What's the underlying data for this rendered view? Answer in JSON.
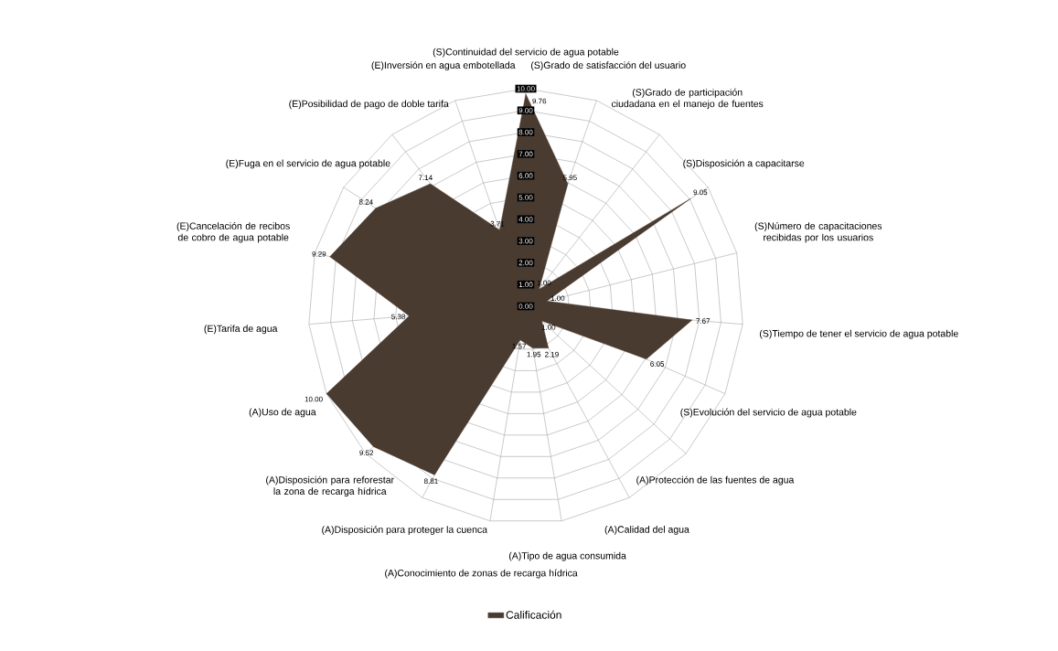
{
  "chart_data": {
    "type": "radar",
    "categories": [
      "(S)Continuidad del servicio de agua potable",
      "(S)Grado de satisfacción del usuario",
      "(S)Grado de participación ciudadana en el manejo de fuentes",
      "(S)Disposición a capacitarse",
      "(S)Número de capacitaciones recibidas por los usuarios",
      "(S)Tiempo de tener el servicio de agua potable",
      "(S)Evolución del servicio de agua potable",
      "(A)Protección de las fuentes de agua",
      "(A)Calidad del agua",
      "(A)Tipo de agua consumida",
      "(A)Conocimiento de zonas de recarga hídrica",
      "(A)Disposición para proteger la cuenca",
      "(A)Disposición para reforestar la zona de recarga hídrica",
      "(A)Uso de agua",
      "(E)Tarifa de agua",
      "(E)Cancelación de  recibos de cobro de agua potable",
      "(E)Fuga en el servicio de agua potable",
      "(E)Posibilidad de pago de  doble  tarifa",
      "(E)Inversión en agua embotellada"
    ],
    "series": [
      {
        "name": "Calificación",
        "color": "#4a3b30",
        "values": [
          9.76,
          5.95,
          1.0,
          9.05,
          1.0,
          7.67,
          6.05,
          1.0,
          2.19,
          1.95,
          1.57,
          8.81,
          9.52,
          10.0,
          5.38,
          9.29,
          8.24,
          7.14,
          3.71
        ],
        "value_labels": [
          "9.76",
          "5.95",
          "1.00",
          "9.05",
          "1.00",
          "7.67",
          "6.05",
          "1.00",
          "2.19",
          "1.95",
          "1.57",
          "8.81",
          "9.52",
          "10.00",
          "5.38",
          "9.29",
          "8.24",
          "7.14",
          "3.71"
        ]
      }
    ],
    "ylim": [
      0,
      10
    ],
    "yticks": [
      {
        "value": 0,
        "label": "0.00"
      },
      {
        "value": 1,
        "label": "1.00"
      },
      {
        "value": 2,
        "label": "2.00"
      },
      {
        "value": 3,
        "label": "3.00"
      },
      {
        "value": 4,
        "label": "4.00"
      },
      {
        "value": 5,
        "label": "5.00"
      },
      {
        "value": 6,
        "label": "6.00"
      },
      {
        "value": 7,
        "label": "7.00"
      },
      {
        "value": 8,
        "label": "8.00"
      },
      {
        "value": 9,
        "label": "9.00"
      },
      {
        "value": 10,
        "label": "10.00"
      }
    ],
    "grid": true,
    "legend": "bottom"
  }
}
